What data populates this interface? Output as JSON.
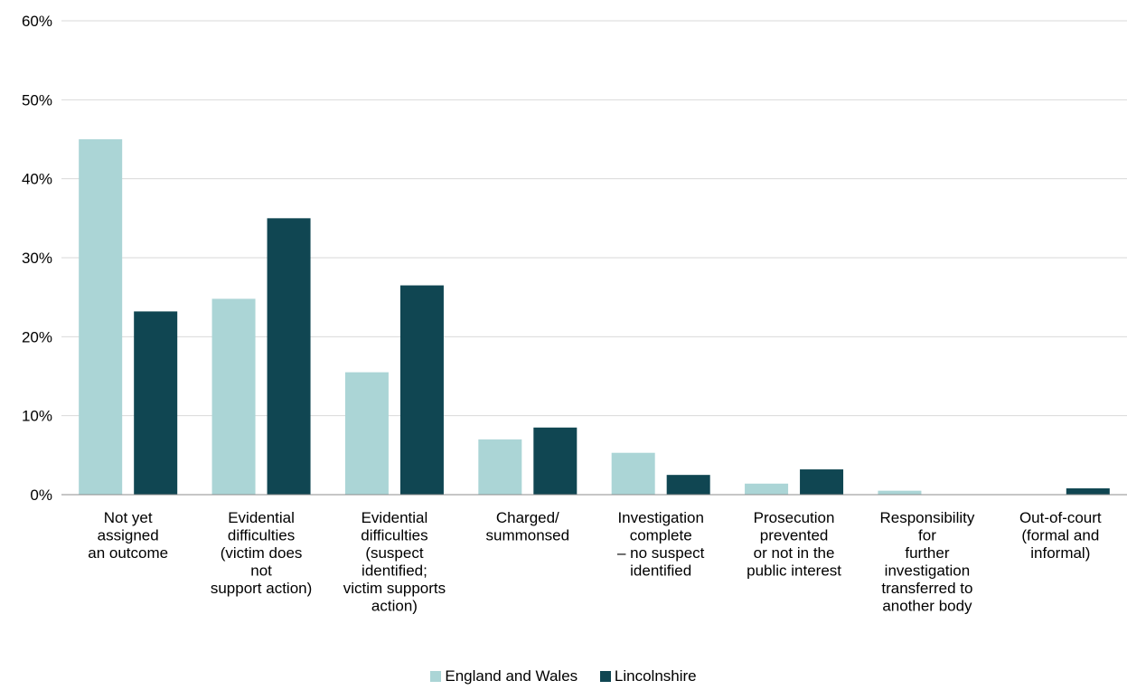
{
  "chart_data": {
    "type": "bar",
    "categories": [
      [
        "Not yet",
        "assigned",
        "an outcome"
      ],
      [
        "Evidential",
        "difficulties",
        "(victim does",
        "not",
        "support action)"
      ],
      [
        "Evidential",
        "difficulties",
        "(suspect",
        "identified;",
        "victim supports",
        "action)"
      ],
      [
        "Charged/",
        "summonsed"
      ],
      [
        "Investigation",
        "complete",
        "– no suspect",
        "identified"
      ],
      [
        "Prosecution",
        "prevented",
        "or not in the",
        "public interest"
      ],
      [
        "Responsibility",
        "for",
        "further",
        "investigation",
        "transferred to",
        "another body"
      ],
      [
        "Out-of-court",
        "(formal and",
        "informal)"
      ]
    ],
    "series": [
      {
        "name": "England and Wales",
        "color": "#abd5d6",
        "values": [
          45.0,
          24.8,
          15.5,
          7.0,
          5.3,
          1.4,
          0.5,
          0.0
        ]
      },
      {
        "name": "Lincolnshire",
        "color": "#104652",
        "values": [
          23.2,
          35.0,
          26.5,
          8.5,
          2.5,
          3.2,
          0.0,
          0.8
        ]
      }
    ],
    "ylim": [
      0,
      60
    ],
    "yticks": [
      0,
      10,
      20,
      30,
      40,
      50,
      60
    ],
    "ytick_labels": [
      "0%",
      "10%",
      "20%",
      "30%",
      "40%",
      "50%",
      "60%"
    ],
    "grid": true,
    "legend_position": "bottom"
  }
}
